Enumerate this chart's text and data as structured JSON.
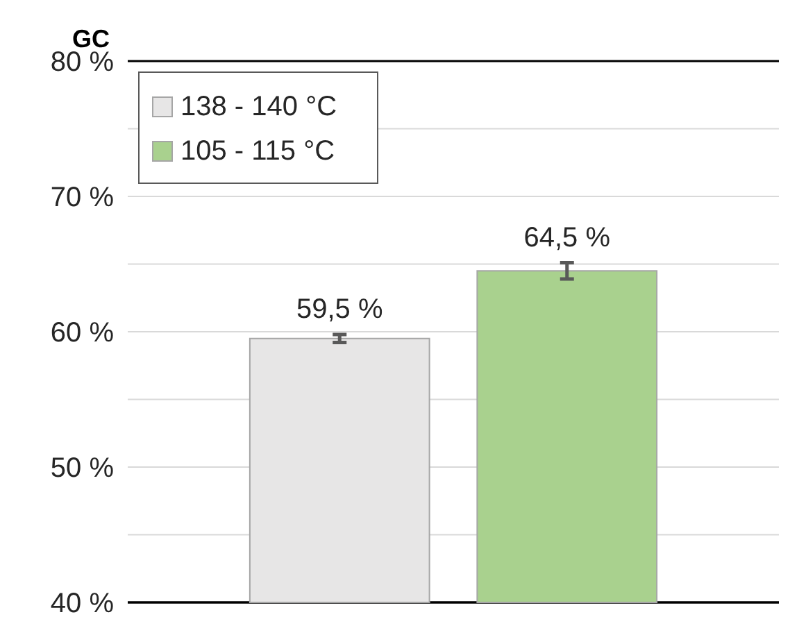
{
  "chart_data": {
    "type": "bar",
    "title": "GC",
    "categories": [
      null
    ],
    "series": [
      {
        "name": "138 - 140 °C",
        "color": "#e7e6e6",
        "values": [
          59.5
        ],
        "errors": [
          0.3
        ],
        "value_labels": [
          "59,5 %"
        ]
      },
      {
        "name": "105 - 115 °C",
        "color": "#a9d18e",
        "values": [
          64.5
        ],
        "errors": [
          0.6
        ],
        "value_labels": [
          "64,5 %"
        ]
      }
    ],
    "ylim": [
      40,
      80
    ],
    "yticks": [
      {
        "value": 40,
        "label": "40 %"
      },
      {
        "value": 45,
        "label": null
      },
      {
        "value": 50,
        "label": "50 %"
      },
      {
        "value": 55,
        "label": null
      },
      {
        "value": 60,
        "label": "60 %"
      },
      {
        "value": 65,
        "label": null
      },
      {
        "value": 70,
        "label": "70 %"
      },
      {
        "value": 75,
        "label": null
      },
      {
        "value": 80,
        "label": "80 %"
      }
    ],
    "grid": "y",
    "legend": "top left"
  }
}
